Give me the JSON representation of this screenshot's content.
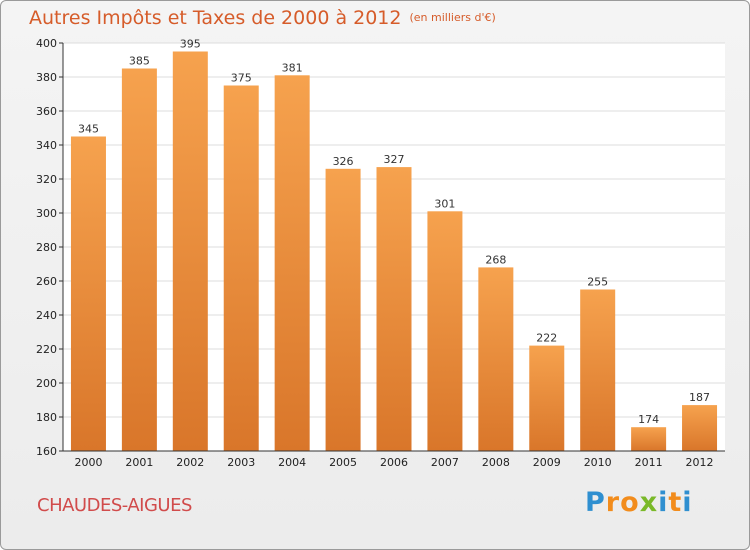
{
  "header": {
    "title": "Autres Impôts et Taxes de 2000 à 2012",
    "unit": "(en milliers d'€)"
  },
  "footer": {
    "commune": "CHAUDES-AIGUES",
    "logo_text": "Proxiti"
  },
  "colors": {
    "bar_light": "#f6a24e",
    "bar_dark": "#d9762a",
    "grid": "#dcdcdc",
    "title": "#d65c2a",
    "commune": "#d14b4b",
    "logo_letters": [
      "#2f8fd0",
      "#f28c1c",
      "#f28c1c",
      "#7ab929",
      "#2f8fd0",
      "#f28c1c",
      "#2f8fd0"
    ]
  },
  "chart_data": {
    "type": "bar",
    "categories": [
      "2000",
      "2001",
      "2002",
      "2003",
      "2004",
      "2005",
      "2006",
      "2007",
      "2008",
      "2009",
      "2010",
      "2011",
      "2012"
    ],
    "values": [
      345,
      385,
      395,
      375,
      381,
      326,
      327,
      301,
      268,
      222,
      255,
      174,
      187
    ],
    "title": "Autres Impôts et Taxes de 2000 à 2012",
    "xlabel": "",
    "ylabel": "",
    "ylim": [
      160,
      400
    ],
    "yticks": [
      160,
      180,
      200,
      220,
      240,
      260,
      280,
      300,
      320,
      340,
      360,
      380,
      400
    ],
    "grid": true,
    "data_labels": true
  }
}
